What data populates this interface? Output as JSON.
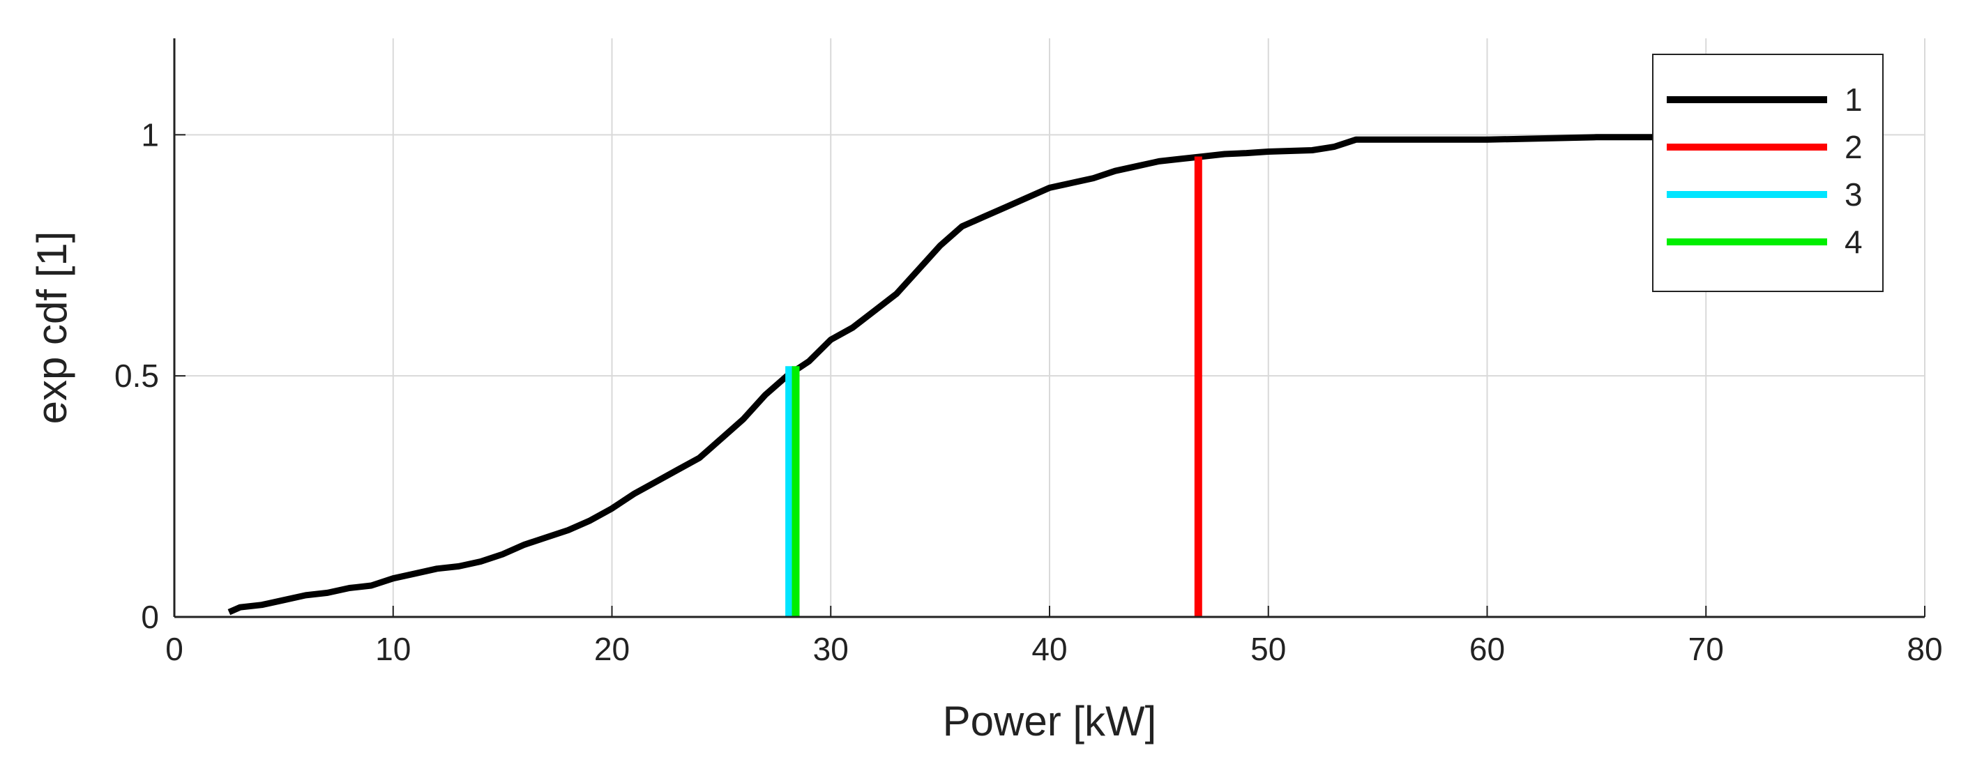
{
  "chart_data": {
    "type": "line",
    "title": "",
    "xlabel": "Power [kW]",
    "ylabel": "exp cdf [1]",
    "xlim": [
      0,
      80
    ],
    "ylim": [
      0,
      1.2
    ],
    "xticks": [
      0,
      10,
      20,
      30,
      40,
      50,
      60,
      70,
      80
    ],
    "xtick_labels": [
      "0",
      "10",
      "20",
      "30",
      "40",
      "50",
      "60",
      "70",
      "80"
    ],
    "yticks": [
      0,
      0.5,
      1
    ],
    "ytick_labels": [
      "0",
      "0.5",
      "1"
    ],
    "grid": true,
    "legend_position": "top-right",
    "series": [
      {
        "name": "1",
        "color": "#000000",
        "x": [
          2.5,
          3,
          4,
          5,
          6,
          7,
          8,
          9,
          10,
          11,
          12,
          13,
          14,
          15,
          16,
          17,
          18,
          19,
          20,
          21,
          22,
          23,
          24,
          25,
          26,
          27,
          28,
          29,
          30,
          31,
          32,
          33,
          34,
          35,
          36,
          37,
          38,
          39,
          40,
          41,
          42,
          43,
          44,
          45,
          46,
          47,
          48,
          49,
          50,
          52,
          53,
          54,
          55,
          60,
          63,
          65,
          70,
          75
        ],
        "y": [
          0.01,
          0.02,
          0.025,
          0.035,
          0.045,
          0.05,
          0.06,
          0.065,
          0.08,
          0.09,
          0.1,
          0.105,
          0.115,
          0.13,
          0.15,
          0.165,
          0.18,
          0.2,
          0.225,
          0.255,
          0.28,
          0.305,
          0.33,
          0.37,
          0.41,
          0.46,
          0.5,
          0.53,
          0.575,
          0.6,
          0.635,
          0.67,
          0.72,
          0.77,
          0.81,
          0.83,
          0.85,
          0.87,
          0.89,
          0.9,
          0.91,
          0.925,
          0.935,
          0.945,
          0.95,
          0.955,
          0.96,
          0.962,
          0.965,
          0.968,
          0.975,
          0.99,
          0.99,
          0.99,
          0.993,
          0.995,
          0.995,
          0.995
        ]
      },
      {
        "name": "2",
        "color": "#ff0000",
        "x": [
          46.8,
          46.8
        ],
        "y": [
          0,
          0.955
        ]
      },
      {
        "name": "3",
        "color": "#00e5ff",
        "x": [
          28.1,
          28.1
        ],
        "y": [
          0,
          0.52
        ]
      },
      {
        "name": "4",
        "color": "#00ee00",
        "x": [
          28.4,
          28.4
        ],
        "y": [
          0,
          0.52
        ]
      }
    ]
  }
}
